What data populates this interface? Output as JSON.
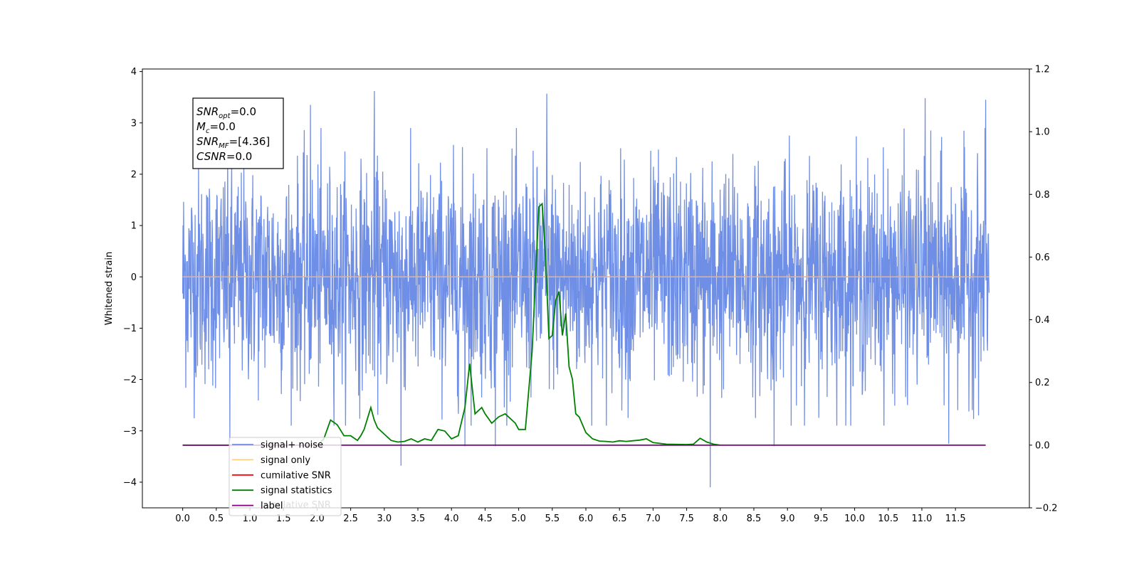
{
  "chart_data": {
    "type": "line",
    "title": "",
    "xlabel": "",
    "ylabel": "Whitened strain",
    "y2label": "",
    "xlim": [
      -0.6,
      12.6
    ],
    "ylim": [
      -4.5,
      4.05
    ],
    "y2lim": [
      -0.2,
      1.2
    ],
    "grid": false,
    "x_ticks": [
      "0.0",
      "0.5",
      "1.0",
      "1.5",
      "2.0",
      "2.5",
      "3.0",
      "3.5",
      "4.0",
      "4.5",
      "5.0",
      "5.5",
      "6.0",
      "6.5",
      "7.0",
      "7.5",
      "8.0",
      "8.5",
      "9.0",
      "9.5",
      "10.0",
      "10.5",
      "11.0",
      "11.5"
    ],
    "y_ticks": [
      "−4",
      "−3",
      "−2",
      "−1",
      "0",
      "1",
      "2",
      "3",
      "4"
    ],
    "y2_ticks": [
      "−0.2",
      "0.0",
      "0.2",
      "0.4",
      "0.6",
      "0.8",
      "1.0",
      "1.2"
    ],
    "annotation": {
      "lines": [
        {
          "var": "SNR",
          "sub": "opt",
          "value": "=0.0"
        },
        {
          "var": "M",
          "sub": "c",
          "value": "=0.0"
        },
        {
          "var": "SNR",
          "sub": "MF",
          "value": "=[4.36]"
        },
        {
          "var": "CSNR",
          "sub": "",
          "value": "=0.0"
        }
      ]
    },
    "legend": {
      "placement": "lower-left",
      "entries": [
        {
          "label": "signal+ noise",
          "color": "#6f8ee6"
        },
        {
          "label": "signal only",
          "color": "#ffcf7f"
        },
        {
          "label": "cumilative SNR",
          "color": "#ff0000"
        },
        {
          "label": "signal statistics",
          "color": "#008000"
        },
        {
          "label": "label",
          "color": "#800080"
        }
      ],
      "hidden_text": "cumilative SNR"
    },
    "series": [
      {
        "name": "signal+ noise",
        "axis": "left",
        "color": "#6f8ee6",
        "x_range": [
          0.0,
          12.0
        ],
        "y_envelope": [
          -2.0,
          2.0
        ],
        "spikes": [
          {
            "x": 2.85,
            "y": 3.62
          },
          {
            "x": 5.42,
            "y": 3.57
          },
          {
            "x": 11.05,
            "y": 3.48
          },
          {
            "x": 11.95,
            "y": 3.45
          },
          {
            "x": 1.9,
            "y": 3.35
          },
          {
            "x": 3.25,
            "y": -3.68
          },
          {
            "x": 7.85,
            "y": -4.1
          },
          {
            "x": 8.8,
            "y": -3.3
          },
          {
            "x": 11.4,
            "y": -3.25
          },
          {
            "x": 0.7,
            "y": -3.2
          },
          {
            "x": 4.2,
            "y": -3.3
          },
          {
            "x": 4.65,
            "y": -3.3
          }
        ]
      },
      {
        "name": "signal only",
        "axis": "left",
        "color": "#f5b26b",
        "x": [
          0.0,
          12.0
        ],
        "y": [
          0.0,
          0.0
        ]
      },
      {
        "name": "signal statistics",
        "axis": "right",
        "color": "#008000",
        "x": [
          2.0,
          2.1,
          2.2,
          2.3,
          2.4,
          2.5,
          2.6,
          2.65,
          2.7,
          2.8,
          2.85,
          2.9,
          2.95,
          3.0,
          3.1,
          3.2,
          3.3,
          3.4,
          3.5,
          3.6,
          3.7,
          3.8,
          3.9,
          4.0,
          4.1,
          4.2,
          4.27,
          4.35,
          4.45,
          4.5,
          4.6,
          4.7,
          4.8,
          4.85,
          4.95,
          5.0,
          5.1,
          5.2,
          5.3,
          5.35,
          5.4,
          5.45,
          5.5,
          5.55,
          5.6,
          5.65,
          5.7,
          5.75,
          5.8,
          5.85,
          5.9,
          6.0,
          6.1,
          6.2,
          6.3,
          6.4,
          6.5,
          6.6,
          6.7,
          6.8,
          6.9,
          7.0,
          7.2,
          7.5,
          7.6,
          7.7,
          7.8,
          7.9,
          8.0
        ],
        "y": [
          0.0,
          0.02,
          0.08,
          0.065,
          0.03,
          0.03,
          0.015,
          0.03,
          0.05,
          0.12,
          0.08,
          0.055,
          0.045,
          0.035,
          0.015,
          0.01,
          0.012,
          0.02,
          0.01,
          0.02,
          0.015,
          0.05,
          0.045,
          0.02,
          0.03,
          0.12,
          0.26,
          0.1,
          0.12,
          0.1,
          0.07,
          0.09,
          0.1,
          0.09,
          0.07,
          0.05,
          0.05,
          0.3,
          0.76,
          0.77,
          0.6,
          0.34,
          0.35,
          0.46,
          0.49,
          0.35,
          0.42,
          0.25,
          0.21,
          0.1,
          0.09,
          0.04,
          0.02,
          0.013,
          0.012,
          0.01,
          0.014,
          0.012,
          0.014,
          0.016,
          0.02,
          0.008,
          0.003,
          0.002,
          0.003,
          0.022,
          0.01,
          0.003,
          0.0
        ],
        "baseline_y": 0.0
      },
      {
        "name": "label",
        "axis": "right",
        "color": "#800080",
        "x": [
          0.0,
          11.95
        ],
        "y": [
          0.0,
          0.0
        ]
      }
    ]
  }
}
